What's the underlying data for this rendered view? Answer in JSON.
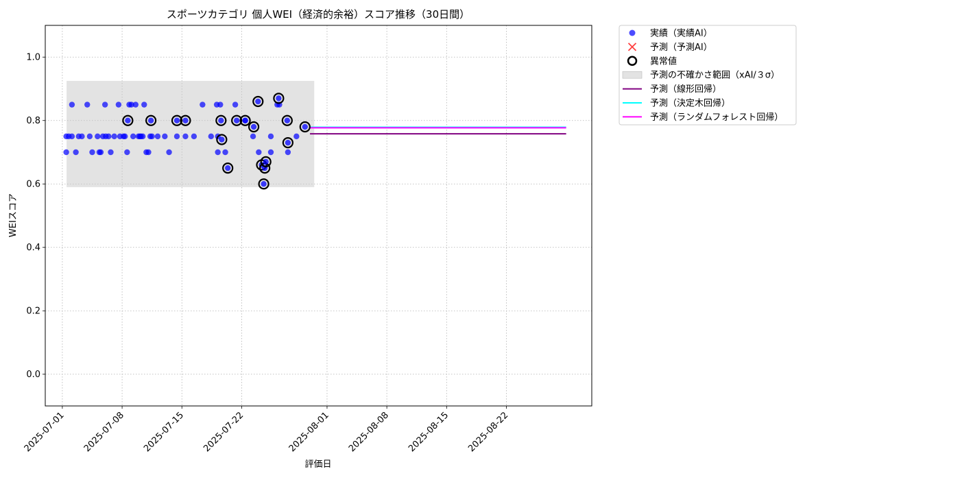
{
  "chart_data": {
    "type": "scatter",
    "title": "スポーツカテゴリ 個人WEI（経済的余裕）スコア推移（30日間）",
    "xlabel": "評価日",
    "ylabel": "WEIスコア",
    "x_type": "date",
    "xlim": [
      "2025-06-29",
      "2025-09-01"
    ],
    "ylim": [
      -0.1,
      1.1
    ],
    "yticks": [
      0.0,
      0.2,
      0.4,
      0.6,
      0.8,
      1.0
    ],
    "ytick_labels": [
      "0.0",
      "0.2",
      "0.4",
      "0.6",
      "0.8",
      "1.0"
    ],
    "xticks": [
      "2025-07-01",
      "2025-07-08",
      "2025-07-15",
      "2025-07-22",
      "2025-08-01",
      "2025-08-08",
      "2025-08-15",
      "2025-08-22"
    ],
    "grid": true,
    "legend_position": "outside-top-right",
    "colors": {
      "actual": "#0000ff",
      "predicted": "#ff0000",
      "anomaly_edge": "#000000",
      "band": "#c8c8c8",
      "linear": "#800080",
      "tree": "#00ffff",
      "forest": "#ff00ff"
    },
    "legend": [
      {
        "key": "actual",
        "label": "実績（実績AI）"
      },
      {
        "key": "predicted",
        "label": "予測（予測AI）"
      },
      {
        "key": "anomaly",
        "label": "異常値"
      },
      {
        "key": "band",
        "label": "予測の不確かさ範囲（xAI/３σ）"
      },
      {
        "key": "linear",
        "label": "予測（線形回帰）"
      },
      {
        "key": "tree",
        "label": "予測（決定木回帰）"
      },
      {
        "key": "forest",
        "label": "予測（ランダムフォレスト回帰）"
      }
    ],
    "uncertainty_band": {
      "x": [
        "2025-07-01T12:00",
        "2025-07-30T12:00"
      ],
      "y": [
        0.59,
        0.925
      ]
    },
    "series": [
      {
        "name": "実績（実績AI）",
        "kind": "scatter",
        "color_key": "actual",
        "points": [
          [
            "2025-07-01T11:00",
            0.7
          ],
          [
            "2025-07-01T11:00",
            0.75
          ],
          [
            "2025-07-01T18:00",
            0.75
          ],
          [
            "2025-07-02T03:00",
            0.85
          ],
          [
            "2025-07-02T03:00",
            0.75
          ],
          [
            "2025-07-02T14:00",
            0.7
          ],
          [
            "2025-07-02T22:00",
            0.75
          ],
          [
            "2025-07-03T07:00",
            0.75
          ],
          [
            "2025-07-03T22:00",
            0.85
          ],
          [
            "2025-07-04T05:00",
            0.75
          ],
          [
            "2025-07-04T12:00",
            0.7
          ],
          [
            "2025-07-05T03:00",
            0.75
          ],
          [
            "2025-07-05T08:00",
            0.7
          ],
          [
            "2025-07-05T12:00",
            0.7
          ],
          [
            "2025-07-05T18:00",
            0.75
          ],
          [
            "2025-07-06T00:00",
            0.85
          ],
          [
            "2025-07-06T02:00",
            0.75
          ],
          [
            "2025-07-06T10:00",
            0.75
          ],
          [
            "2025-07-06T16:00",
            0.7
          ],
          [
            "2025-07-07T02:00",
            0.75
          ],
          [
            "2025-07-07T14:00",
            0.85
          ],
          [
            "2025-07-07T18:00",
            0.75
          ],
          [
            "2025-07-08T04:00",
            0.75
          ],
          [
            "2025-07-08T08:00",
            0.75
          ],
          [
            "2025-07-08T14:00",
            0.7
          ],
          [
            "2025-07-08T20:00",
            0.85
          ],
          [
            "2025-07-09T02:00",
            0.85
          ],
          [
            "2025-07-09T07:00",
            0.75
          ],
          [
            "2025-07-09T14:00",
            0.85
          ],
          [
            "2025-07-09T22:00",
            0.75
          ],
          [
            "2025-07-10T02:00",
            0.75
          ],
          [
            "2025-07-10T05:00",
            0.75
          ],
          [
            "2025-07-10T10:00",
            0.75
          ],
          [
            "2025-07-10T14:00",
            0.85
          ],
          [
            "2025-07-10T20:00",
            0.7
          ],
          [
            "2025-07-11T02:00",
            0.7
          ],
          [
            "2025-07-11T07:00",
            0.75
          ],
          [
            "2025-07-11T12:00",
            0.75
          ],
          [
            "2025-07-12T04:00",
            0.75
          ],
          [
            "2025-07-13T00:00",
            0.75
          ],
          [
            "2025-07-13T12:00",
            0.7
          ],
          [
            "2025-07-14T10:00",
            0.75
          ],
          [
            "2025-07-15T10:00",
            0.75
          ],
          [
            "2025-07-16T10:00",
            0.75
          ],
          [
            "2025-07-17T10:00",
            0.85
          ],
          [
            "2025-07-18T10:00",
            0.75
          ],
          [
            "2025-07-19T02:00",
            0.85
          ],
          [
            "2025-07-19T05:00",
            0.75
          ],
          [
            "2025-07-19T05:00",
            0.7
          ],
          [
            "2025-07-19T12:00",
            0.85
          ],
          [
            "2025-07-20T02:00",
            0.7
          ],
          [
            "2025-07-21T06:00",
            0.85
          ],
          [
            "2025-07-22T10:00",
            0.8
          ],
          [
            "2025-07-23T08:00",
            0.75
          ],
          [
            "2025-07-24T00:00",
            0.7
          ],
          [
            "2025-07-25T10:00",
            0.75
          ],
          [
            "2025-07-25T10:00",
            0.7
          ],
          [
            "2025-07-26T04:00",
            0.85
          ],
          [
            "2025-07-26T10:00",
            0.85
          ],
          [
            "2025-07-27T10:00",
            0.7
          ],
          [
            "2025-07-28T10:00",
            0.75
          ]
        ]
      },
      {
        "name": "異常値",
        "kind": "anomaly",
        "color_key": "actual",
        "points": [
          [
            "2025-07-08T16:00",
            0.8
          ],
          [
            "2025-07-11T09:00",
            0.8
          ],
          [
            "2025-07-14T10:00",
            0.8
          ],
          [
            "2025-07-15T10:00",
            0.8
          ],
          [
            "2025-07-19T14:00",
            0.8
          ],
          [
            "2025-07-19T16:00",
            0.74
          ],
          [
            "2025-07-20T09:00",
            0.65
          ],
          [
            "2025-07-21T10:00",
            0.8
          ],
          [
            "2025-07-22T10:00",
            0.8
          ],
          [
            "2025-07-23T10:00",
            0.78
          ],
          [
            "2025-07-23T22:00",
            0.86
          ],
          [
            "2025-07-24T08:00",
            0.66
          ],
          [
            "2025-07-24T14:00",
            0.6
          ],
          [
            "2025-07-24T17:00",
            0.65
          ],
          [
            "2025-07-24T20:00",
            0.67
          ],
          [
            "2025-07-26T08:00",
            0.87
          ],
          [
            "2025-07-27T08:00",
            0.8
          ],
          [
            "2025-07-27T10:00",
            0.73
          ],
          [
            "2025-07-29T10:00",
            0.78
          ]
        ]
      },
      {
        "name": "予測（線形回帰）",
        "kind": "line",
        "color_key": "linear",
        "points": [
          [
            "2025-07-30T00:00",
            0.758
          ],
          [
            "2025-08-29T00:00",
            0.758
          ]
        ]
      },
      {
        "name": "予測（決定木回帰）",
        "kind": "line",
        "color_key": "tree",
        "points": [
          [
            "2025-07-30T00:00",
            0.779
          ],
          [
            "2025-08-29T00:00",
            0.779
          ]
        ]
      },
      {
        "name": "予測（ランダムフォレスト回帰）",
        "kind": "line",
        "color_key": "forest",
        "points": [
          [
            "2025-07-30T00:00",
            0.777
          ],
          [
            "2025-08-29T00:00",
            0.777
          ]
        ]
      }
    ]
  }
}
